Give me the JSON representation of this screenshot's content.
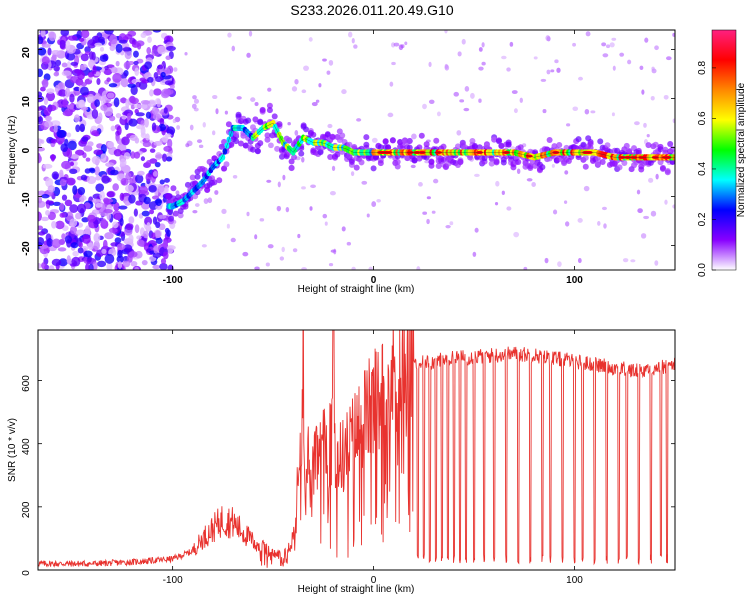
{
  "title": "S233.2026.011.20.49.G10",
  "colors": {
    "line": "#e8322e",
    "axis": "#000000",
    "background": "#ffffff"
  },
  "chart_data": [
    {
      "type": "heatmap",
      "title": "S233.2026.011.20.49.G10",
      "xlabel": "Height of straight line (km)",
      "ylabel": "Frequency (Hz)",
      "xlim": [
        -167,
        150
      ],
      "ylim": [
        -25,
        24
      ],
      "xticks": [
        -100,
        0,
        100
      ],
      "xtick_labels": [
        "-100",
        "0",
        "100"
      ],
      "yticks": [
        -20,
        -10,
        0,
        10,
        20
      ],
      "ytick_labels": [
        "-20",
        "-10",
        "0",
        "10",
        "20"
      ],
      "ridge": {
        "description": "Main spectral ridge (frequency vs height)",
        "x": [
          -100,
          -95,
          -90,
          -85,
          -80,
          -75,
          -70,
          -65,
          -60,
          -55,
          -50,
          -45,
          -40,
          -35,
          -30,
          -25,
          -20,
          -15,
          -10,
          -5,
          0,
          10,
          20,
          30,
          40,
          50,
          60,
          70,
          80,
          90,
          100,
          110,
          120,
          130,
          140,
          148
        ],
        "y": [
          -12,
          -11,
          -9,
          -7,
          -4,
          -2,
          4,
          4,
          2,
          4,
          5,
          1,
          -1,
          2,
          1,
          1,
          0,
          0,
          -1,
          -1,
          -1,
          -1,
          -1,
          -1,
          -1,
          -1,
          -1,
          -1,
          -2,
          -1,
          -1,
          -1,
          -2,
          -2,
          -2,
          -2
        ]
      },
      "colorbar": {
        "label": "Normalized spectral amplitude",
        "range": [
          0,
          0.95
        ],
        "ticks": [
          0.0,
          0.2,
          0.4,
          0.6,
          0.8
        ],
        "tick_labels": [
          "0.0",
          "0.2",
          "0.4",
          "0.6",
          "0.8"
        ],
        "colormap": [
          "#ffffff",
          "#8800ff",
          "#0000ff",
          "#00ffff",
          "#00ff00",
          "#ffff00",
          "#ff8800",
          "#ff0000",
          "#ff2080"
        ]
      }
    },
    {
      "type": "line",
      "title": "",
      "xlabel": "Height of straight line (km)",
      "ylabel": "SNR (10 * v/v)",
      "xlim": [
        -167,
        150
      ],
      "ylim": [
        0,
        760
      ],
      "xticks": [
        -100,
        0,
        100
      ],
      "xtick_labels": [
        "-100",
        "0",
        "100"
      ],
      "yticks": [
        0,
        200,
        400,
        600
      ],
      "ytick_labels": [
        "0",
        "200",
        "400",
        "600"
      ],
      "series": [
        {
          "name": "SNR",
          "x": [
            -167,
            -140,
            -120,
            -110,
            -100,
            -90,
            -85,
            -80,
            -75,
            -70,
            -65,
            -60,
            -55,
            -50,
            -45,
            -40,
            -38,
            -36,
            -35,
            -34,
            -33,
            -31,
            -30,
            -28,
            -25,
            -21,
            -20,
            -19,
            -15,
            -10,
            -5,
            0,
            5,
            10,
            15,
            20,
            30,
            40,
            50,
            60,
            70,
            80,
            90,
            100,
            110,
            120,
            130,
            140,
            150
          ],
          "y": [
            20,
            20,
            25,
            30,
            35,
            60,
            100,
            130,
            160,
            150,
            120,
            90,
            70,
            50,
            50,
            100,
            250,
            400,
            720,
            200,
            400,
            220,
            320,
            350,
            380,
            400,
            750,
            350,
            360,
            420,
            480,
            520,
            560,
            610,
            640,
            650,
            660,
            670,
            675,
            680,
            685,
            680,
            670,
            660,
            650,
            640,
            630,
            640,
            650
          ]
        }
      ],
      "dropouts": {
        "description": "Near-zero spikes between 20 and 150 km",
        "x": [
          22,
          25,
          28,
          31,
          34,
          37,
          40,
          43,
          46,
          50,
          55,
          60,
          66,
          72,
          78,
          84,
          88,
          94,
          100,
          104,
          110,
          116,
          122,
          126,
          132,
          138,
          143,
          146
        ]
      }
    }
  ]
}
